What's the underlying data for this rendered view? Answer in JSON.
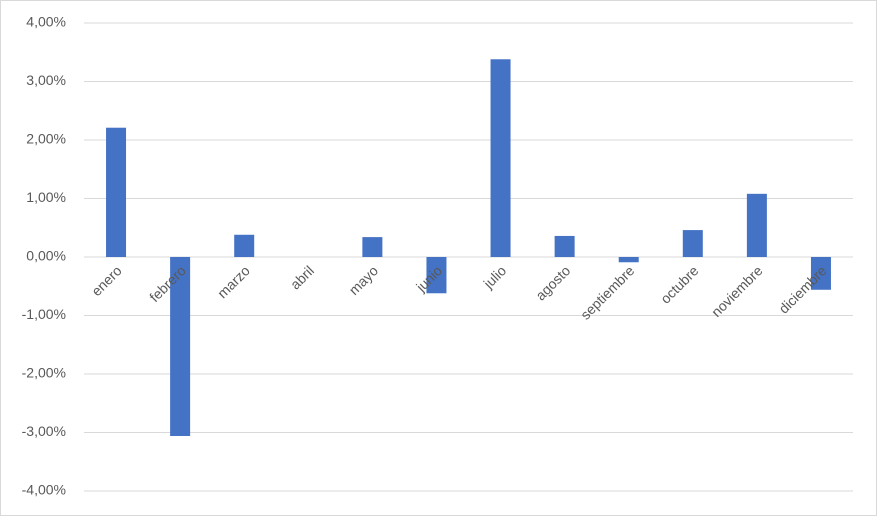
{
  "chart_data": {
    "type": "bar",
    "categories": [
      "enero",
      "febrero",
      "marzo",
      "abril",
      "mayo",
      "junio",
      "julio",
      "agosto",
      "septiembre",
      "octubre",
      "noviembre",
      "diciembre"
    ],
    "values": [
      2.21,
      -3.06,
      0.38,
      0,
      0.34,
      -0.62,
      3.38,
      0.36,
      -0.09,
      0.46,
      1.08,
      -0.56
    ],
    "color": "#4472c4",
    "ylim": [
      -4,
      4
    ],
    "yticks": [
      {
        "value": -4,
        "label": "-4,00%"
      },
      {
        "value": -3,
        "label": "-3,00%"
      },
      {
        "value": -2,
        "label": "-2,00%"
      },
      {
        "value": -1,
        "label": "-1,00%"
      },
      {
        "value": 0,
        "label": "0,00%"
      },
      {
        "value": 1,
        "label": "1,00%"
      },
      {
        "value": 2,
        "label": "2,00%"
      },
      {
        "value": 3,
        "label": "3,00%"
      },
      {
        "value": 4,
        "label": "4,00%"
      }
    ],
    "grid": true
  }
}
